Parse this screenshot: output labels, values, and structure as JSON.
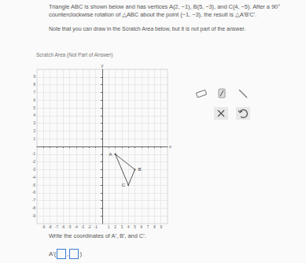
{
  "problem": [
    "Triangle ABC is shown below and has vertices A(2, −1), B(5, −3), and C(4, −5). After a 90°",
    "counterclockwise rotation of △ABC about the point (−1, −3), the result is △A′B′C′."
  ],
  "note": "Note that you can draw in the Scratch Area below, but it is not part of the answer.",
  "scratch_title": "Scratch Area (Not Part of Answer)",
  "prompt": "Write the coordinates of A′, B′, and C′.",
  "answer_prefix": "A′(",
  "answer_sep": ",",
  "answer_suffix": ")",
  "chart_data": {
    "type": "line",
    "xlabel": "x",
    "ylabel": "y",
    "x": [
      2,
      5,
      4
    ],
    "values": [
      -1,
      -3,
      -5
    ],
    "point_labels": [
      "A",
      "B",
      "C"
    ],
    "color": "#555555",
    "xlim": [
      -10,
      10
    ],
    "ylim": [
      -10,
      10
    ],
    "xticks": [
      -9,
      -8,
      -7,
      -6,
      -5,
      -4,
      -3,
      -2,
      -1,
      1,
      2,
      3,
      4,
      5,
      6,
      7,
      8,
      9
    ],
    "yticks": [
      -9,
      -8,
      -7,
      -6,
      -5,
      -4,
      -3,
      -2,
      -1,
      1,
      2,
      3,
      4,
      5,
      6,
      7,
      8,
      9
    ],
    "grid": true
  }
}
